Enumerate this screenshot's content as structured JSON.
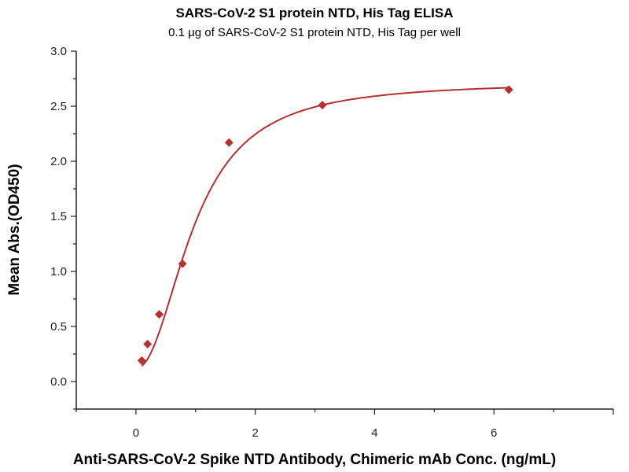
{
  "chart_data": {
    "type": "scatter",
    "title": "SARS-CoV-2 S1 protein NTD, His Tag ELISA",
    "subtitle": "0.1 μg of SARS-CoV-2 S1 protein NTD, His Tag per well",
    "xlabel": "Anti-SARS-CoV-2 Spike NTD Antibody, Chimeric mAb Conc. (ng/mL)",
    "ylabel": "Mean Abs.(OD450)",
    "xlim": [
      -1,
      8
    ],
    "ylim": [
      -0.25,
      3.0
    ],
    "x_ticks": [
      "0",
      "2",
      "4",
      "6"
    ],
    "y_ticks": [
      "0.0",
      "0.5",
      "1.0",
      "1.5",
      "2.0",
      "2.5",
      "3.0"
    ],
    "grid": false,
    "fit_curve": "4-parameter logistic",
    "series": [
      {
        "x": [
          0.098,
          0.195,
          0.39,
          0.78,
          1.56,
          3.125,
          6.25
        ],
        "y": [
          0.19,
          0.34,
          0.61,
          1.07,
          2.17,
          2.51,
          2.65
        ],
        "color": "#b5302f",
        "marker": "diamond"
      }
    ]
  }
}
